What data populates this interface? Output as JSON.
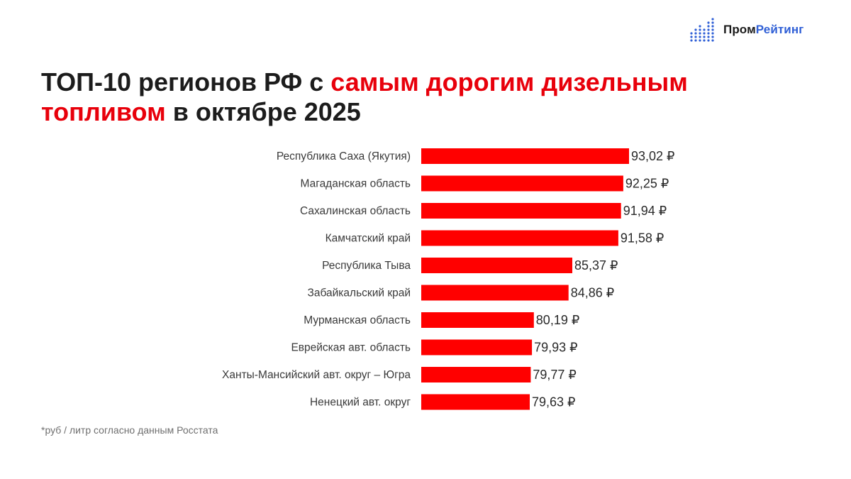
{
  "logo": {
    "text_part1": "Пром",
    "text_part2": "Рейтинг",
    "icon": "bar-dots-icon",
    "color_accent": "#2f5fd6"
  },
  "title": {
    "part1": "ТОП-10 регионов РФ с ",
    "part2": "самым дорогим дизельным",
    "part3": "топливом",
    "part4": " в октябре 2025",
    "highlight_color": "#e8000b"
  },
  "footnote": "*руб / литр согласно данным Росстата",
  "chart_data": {
    "type": "bar",
    "orientation": "horizontal",
    "bar_color": "#ff0000",
    "categories": [
      "Республика Саха (Якутия)",
      "Магаданская область",
      "Сахалинская область",
      "Камчатский край",
      "Республика Тыва",
      "Забайкальский край",
      "Мурманская область",
      "Еврейская авт. область",
      "Ханты-Мансийский авт. округ – Югра",
      "Ненецкий авт. округ"
    ],
    "values": [
      93.02,
      92.25,
      91.94,
      91.58,
      85.37,
      84.86,
      80.19,
      79.93,
      79.77,
      79.63
    ],
    "value_labels": [
      "93,02 ₽",
      "92,25 ₽",
      "91,94 ₽",
      "91,58 ₽",
      "85,37 ₽",
      "84,86 ₽",
      "80,19 ₽",
      "79,93 ₽",
      "79,77 ₽",
      "79,63 ₽"
    ],
    "grid": false,
    "legend": "none"
  }
}
